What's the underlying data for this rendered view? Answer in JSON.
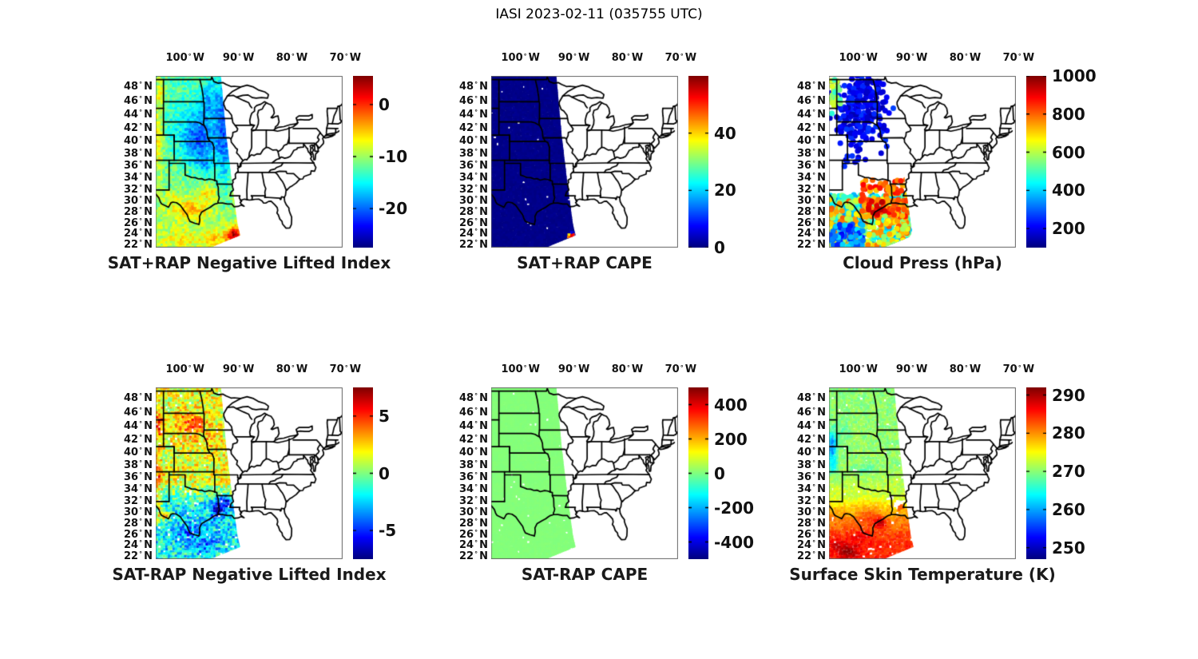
{
  "figure_title": "IASI 2023-02-11 (035755 UTC)",
  "map": {
    "projection": "mercator",
    "lon_range": [
      -105.5,
      -70.5
    ],
    "lat_range": [
      21.5,
      49.5
    ]
  },
  "axes": {
    "lon_ticks": [
      {
        "value": -100,
        "label": "100",
        "hemi": "W"
      },
      {
        "value": -90,
        "label": "90",
        "hemi": "W"
      },
      {
        "value": -80,
        "label": "80",
        "hemi": "W"
      },
      {
        "value": -70,
        "label": "70",
        "hemi": "W"
      }
    ],
    "lat_ticks": [
      {
        "value": 48,
        "label": "48",
        "hemi": "N"
      },
      {
        "value": 46,
        "label": "46",
        "hemi": "N"
      },
      {
        "value": 44,
        "label": "44",
        "hemi": "N"
      },
      {
        "value": 42,
        "label": "42",
        "hemi": "N"
      },
      {
        "value": 40,
        "label": "40",
        "hemi": "N"
      },
      {
        "value": 38,
        "label": "38",
        "hemi": "N"
      },
      {
        "value": 36,
        "label": "36",
        "hemi": "N"
      },
      {
        "value": 34,
        "label": "34",
        "hemi": "N"
      },
      {
        "value": 32,
        "label": "32",
        "hemi": "N"
      },
      {
        "value": 30,
        "label": "30",
        "hemi": "N"
      },
      {
        "value": 28,
        "label": "28",
        "hemi": "N"
      },
      {
        "value": 26,
        "label": "26",
        "hemi": "N"
      },
      {
        "value": 24,
        "label": "24",
        "hemi": "N"
      },
      {
        "value": 22,
        "label": "22",
        "hemi": "N"
      }
    ]
  },
  "swath_polygon": [
    [
      -105.5,
      49.6
    ],
    [
      -93.3,
      49.6
    ],
    [
      -92.3,
      41.0
    ],
    [
      -91.2,
      33.0
    ],
    [
      -90.2,
      26.0
    ],
    [
      -89.7,
      23.8
    ],
    [
      -96.0,
      21.2
    ],
    [
      -105.5,
      19.3
    ]
  ],
  "chart_data": [
    {
      "title": "SAT+RAP Negative Lifted Index",
      "type": "satellite-swath-map",
      "render": "granular",
      "colormap": "jet",
      "colorbar": {
        "range": [
          -27.5,
          5.5
        ],
        "ticks": [
          0,
          -10,
          -20
        ]
      },
      "field": {
        "lat_stops": [
          [
            49.5,
            -12.5
          ],
          [
            42,
            -13.5
          ],
          [
            34,
            -11.5
          ],
          [
            28,
            -10
          ],
          [
            21.5,
            -9
          ]
        ],
        "noise": 2.4,
        "cell": 3.8,
        "dropout": 0,
        "blobs": [
          [
            -97.3,
            40.3,
            3.2,
            3.8,
            -7.5
          ],
          [
            -92.6,
            41.0,
            1.5,
            9.0,
            -6.5
          ],
          [
            -95.3,
            46.0,
            2.0,
            2.4,
            -4.5
          ],
          [
            -96.2,
            36.2,
            1.8,
            1.6,
            -4
          ],
          [
            -105.0,
            40.5,
            1.0,
            5.5,
            7
          ],
          [
            -104.6,
            47.3,
            0.9,
            1.8,
            5
          ],
          [
            -99.0,
            28.6,
            3.5,
            1.9,
            5.5
          ],
          [
            -95.7,
            31.4,
            1.8,
            1.2,
            4.5
          ],
          [
            -102.6,
            30.5,
            1.4,
            1.1,
            3
          ],
          [
            -90.6,
            23.7,
            1.5,
            1.7,
            13
          ],
          [
            -94.5,
            23.0,
            2.6,
            1.6,
            4
          ],
          [
            -100.8,
            23.2,
            2.6,
            1.5,
            3
          ]
        ]
      }
    },
    {
      "title": "SAT+RAP CAPE",
      "type": "satellite-swath-map",
      "render": "granular",
      "colormap": "jet",
      "colorbar": {
        "range": [
          0,
          60
        ],
        "ticks": [
          40,
          20,
          0
        ]
      },
      "field": {
        "lat_stops": [
          [
            49.5,
            0.6
          ],
          [
            21.5,
            0.6
          ]
        ],
        "noise": 0.5,
        "cell": 4,
        "dropout": 0.008,
        "pow": 3,
        "blobs": [
          [
            -90.35,
            23.55,
            0.8,
            0.65,
            54
          ]
        ]
      }
    },
    {
      "title": "Cloud Press (hPa)",
      "type": "satellite-swath-map",
      "render": "scatter",
      "colormap": "jet",
      "colorbar": {
        "range": [
          100,
          1000
        ],
        "ticks": [
          1000,
          800,
          600,
          400,
          200
        ]
      },
      "scatter": {
        "radius": 3.5,
        "clusters": [
          {
            "center": [
              -99.3,
              44.8
            ],
            "spread": [
              2.5,
              2.8
            ],
            "count": 240,
            "v": [
              140,
              270
            ]
          },
          {
            "center": [
              -104.6,
              46.9
            ],
            "spread": [
              0.55,
              1.2
            ],
            "count": 24,
            "v": [
              470,
              650
            ]
          },
          {
            "center": [
              -101.5,
              37.6
            ],
            "spread": [
              1.4,
              1.1
            ],
            "count": 10,
            "v": [
              150,
              260
            ]
          },
          {
            "region": [
              -105.4,
              -90.2,
              21.6,
              31.2
            ],
            "count": 470,
            "v": [
              340,
              560
            ]
          },
          {
            "region": [
              -105.4,
              -90.5,
              21.6,
              30.5
            ],
            "count": 190,
            "v": [
              560,
              820
            ]
          },
          {
            "region": [
              -99.5,
              -91.0,
              27.0,
              33.8
            ],
            "count": 110,
            "v": [
              700,
              890
            ]
          },
          {
            "region": [
              -98.5,
              -95.0,
              27.5,
              30.2
            ],
            "count": 14,
            "v": [
              890,
              960
            ]
          },
          {
            "region": [
              -105.4,
              -99.0,
              21.6,
              26.0
            ],
            "count": 80,
            "v": [
              200,
              420
            ]
          }
        ]
      }
    },
    {
      "title": "SAT-RAP Negative Lifted Index",
      "type": "satellite-swath-map",
      "render": "granular",
      "colormap": "jet",
      "colorbar": {
        "range": [
          -7.5,
          7.5
        ],
        "ticks": [
          5,
          0,
          -5
        ]
      },
      "field": {
        "lat_stops": [
          [
            49.5,
            1.6
          ],
          [
            35.5,
            1.6
          ],
          [
            33,
            -0.3
          ],
          [
            31,
            -2
          ],
          [
            26,
            -2.4
          ],
          [
            21.5,
            -1.6
          ]
        ],
        "noise": 2.0,
        "cell": 3.4,
        "dropout": 0.035,
        "blobs": [
          [
            -93.7,
            30.9,
            1.5,
            1.7,
            -4.5
          ],
          [
            -92.2,
            32.2,
            0.9,
            0.9,
            -3.5
          ],
          [
            -96.5,
            24.0,
            2.5,
            1.7,
            -2
          ],
          [
            -99.5,
            26.8,
            2.3,
            1.8,
            -1.5
          ],
          [
            -105.0,
            30.5,
            0.8,
            3.0,
            3.5
          ],
          [
            -104.9,
            44.0,
            0.8,
            2.5,
            3
          ],
          [
            -99.8,
            44.3,
            2.2,
            1.6,
            2.5
          ],
          [
            -103.6,
            29.5,
            1.0,
            0.8,
            4.5
          ],
          [
            -104.9,
            36.5,
            0.7,
            1.5,
            3
          ],
          [
            -97.0,
            44.8,
            1.5,
            1.2,
            2
          ],
          [
            -96.0,
            41.5,
            2.5,
            1.5,
            1
          ]
        ]
      }
    },
    {
      "title": "SAT-RAP CAPE",
      "type": "satellite-swath-map",
      "render": "granular",
      "colormap": "jet",
      "colorbar": {
        "range": [
          -500,
          500
        ],
        "ticks": [
          400,
          200,
          0,
          -200,
          -400
        ]
      },
      "field": {
        "lat_stops": [
          [
            49.5,
            5
          ],
          [
            21.5,
            5
          ]
        ],
        "noise": 4,
        "cell": 4,
        "dropout": 0.012,
        "blobs": []
      }
    },
    {
      "title": "Surface Skin Temperature (K)",
      "type": "satellite-swath-map",
      "render": "granular",
      "colormap": "jet",
      "colorbar": {
        "range": [
          247,
          292
        ],
        "ticks": [
          290,
          280,
          270,
          260,
          250
        ]
      },
      "field": {
        "lat_stops": [
          [
            49.5,
            270
          ],
          [
            38,
            270.5
          ],
          [
            33,
            273
          ],
          [
            30,
            279
          ],
          [
            26,
            283.5
          ],
          [
            21.5,
            285.5
          ]
        ],
        "noise": 1.6,
        "cell": 3.5,
        "dropout": 0.02,
        "blobs": [
          [
            -104.9,
            41.0,
            0.9,
            2.2,
            -12
          ],
          [
            -104.6,
            37.8,
            0.8,
            1.3,
            -6
          ],
          [
            -99.0,
            37.3,
            2.5,
            1.0,
            -2.5
          ],
          [
            -103.0,
            43.0,
            1.5,
            1.5,
            -2
          ],
          [
            -95.9,
            28.2,
            1.1,
            0.9,
            8.5
          ],
          [
            -101.8,
            22.8,
            1.6,
            1.4,
            6.5
          ],
          [
            -104.2,
            24.3,
            1.3,
            1.2,
            4
          ],
          [
            -98.0,
            29.5,
            2.0,
            1.5,
            3.5
          ],
          [
            -100.0,
            25.5,
            2.5,
            2.0,
            2.5
          ]
        ],
        "gaps": [
          [
            -92.4,
            31.4,
            1.2,
            1.1
          ],
          [
            -94.0,
            32.6,
            0.7,
            0.5
          ],
          [
            -97.6,
            23.4,
            0.7,
            0.5
          ]
        ],
        "extra_dots": {
          "center": [
            -92.1,
            30.9
          ],
          "spread": [
            0.25,
            0.3
          ],
          "count": 8,
          "v": [
            281,
            284
          ]
        }
      }
    }
  ]
}
